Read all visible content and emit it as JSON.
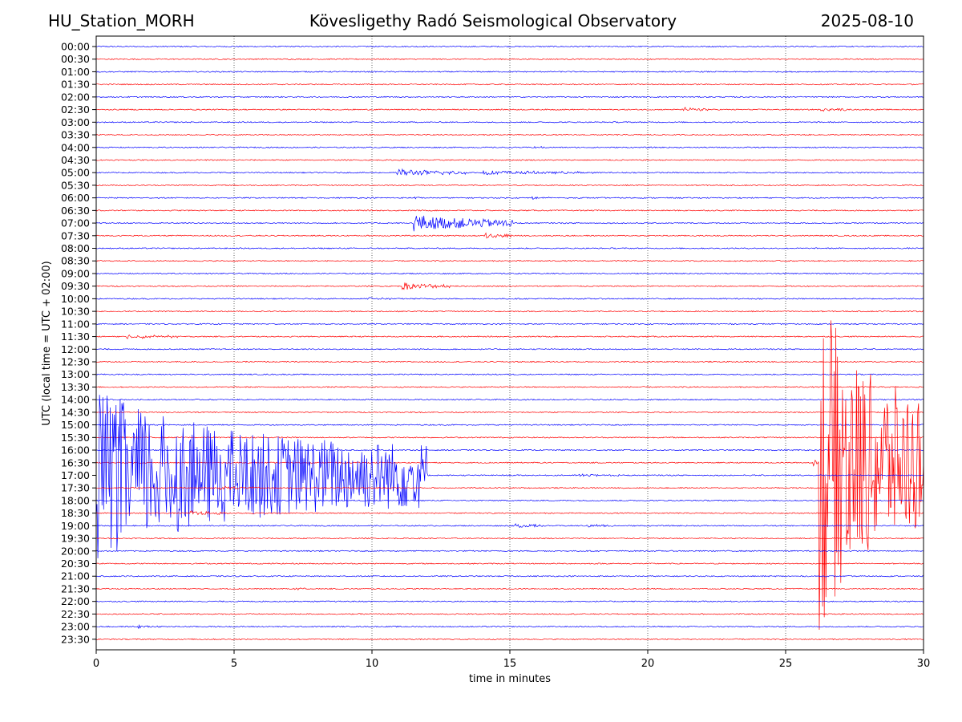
{
  "header": {
    "station": "HU_Station_MORH",
    "observatory": "Kövesligethy Radó Seismological Observatory",
    "date": "2025-08-10"
  },
  "chart_data": {
    "type": "line",
    "xlabel": "time in minutes",
    "ylabel": "UTC (local time = UTC + 02:00)",
    "xlim": [
      0,
      30
    ],
    "xticks": [
      "0",
      "5",
      "10",
      "15",
      "20",
      "25",
      "30"
    ],
    "grid": "vertical dotted lines at each x tick",
    "row_labels": [
      "00:00",
      "00:30",
      "01:00",
      "01:30",
      "02:00",
      "02:30",
      "03:00",
      "03:30",
      "04:00",
      "04:30",
      "05:00",
      "05:30",
      "06:00",
      "06:30",
      "07:00",
      "07:30",
      "08:00",
      "08:30",
      "09:00",
      "09:30",
      "10:00",
      "10:30",
      "11:00",
      "11:30",
      "12:00",
      "12:30",
      "13:00",
      "13:30",
      "14:00",
      "14:30",
      "15:00",
      "15:30",
      "16:00",
      "16:30",
      "17:00",
      "17:30",
      "18:00",
      "18:30",
      "19:00",
      "19:30",
      "20:00",
      "20:30",
      "21:00",
      "21:30",
      "22:00",
      "22:30",
      "23:00",
      "23:30"
    ],
    "trace_colors": [
      "#0000ff",
      "#ff0000"
    ],
    "events": [
      {
        "row": "02:30",
        "start_min": 21.3,
        "duration_min": 0.9,
        "amplitude": 3
      },
      {
        "row": "02:30",
        "start_min": 26.2,
        "duration_min": 1.0,
        "amplitude": 2.5
      },
      {
        "row": "03:30",
        "start_min": 9.8,
        "duration_min": 0.4,
        "amplitude": 2
      },
      {
        "row": "04:00",
        "start_min": 15.9,
        "duration_min": 0.4,
        "amplitude": 2
      },
      {
        "row": "05:00",
        "start_min": 10.9,
        "duration_min": 2.5,
        "amplitude": 5
      },
      {
        "row": "05:00",
        "start_min": 14.0,
        "duration_min": 4.0,
        "amplitude": 3
      },
      {
        "row": "06:00",
        "start_min": 11.5,
        "duration_min": 0.3,
        "amplitude": 2
      },
      {
        "row": "06:00",
        "start_min": 15.8,
        "duration_min": 1.5,
        "amplitude": 1.5
      },
      {
        "row": "07:00",
        "start_min": 11.5,
        "duration_min": 3.6,
        "amplitude": 12
      },
      {
        "row": "07:30",
        "start_min": 14.1,
        "duration_min": 1.0,
        "amplitude": 4
      },
      {
        "row": "09:30",
        "start_min": 11.1,
        "duration_min": 1.8,
        "amplitude": 5
      },
      {
        "row": "10:00",
        "start_min": 9.9,
        "duration_min": 0.9,
        "amplitude": 2
      },
      {
        "row": "11:30",
        "start_min": 1.0,
        "duration_min": 2.0,
        "amplitude": 3
      },
      {
        "row": "16:30",
        "start_min": 26.0,
        "duration_min": 0.4,
        "amplitude": 4
      },
      {
        "row": "17:00",
        "start_min": 0.0,
        "duration_min": 12.0,
        "amplitude": 110
      },
      {
        "row": "17:00",
        "start_min": 17.5,
        "duration_min": 1.5,
        "amplitude": 2
      },
      {
        "row": "17:30",
        "start_min": 4.5,
        "duration_min": 1.5,
        "amplitude": 2
      },
      {
        "row": "18:30",
        "start_min": 3.4,
        "duration_min": 1.5,
        "amplitude": 3
      },
      {
        "row": "19:00",
        "start_min": 15.2,
        "duration_min": 1.0,
        "amplitude": 3
      },
      {
        "row": "19:00",
        "start_min": 17.8,
        "duration_min": 1.0,
        "amplitude": 2
      },
      {
        "row": "21:30",
        "start_min": 7.2,
        "duration_min": 0.4,
        "amplitude": 2
      },
      {
        "row": "23:00",
        "start_min": 1.5,
        "duration_min": 0.8,
        "amplitude": 2
      },
      {
        "row": "16:30",
        "start_min": 26.2,
        "duration_min": 3.8,
        "amplitude": 230
      }
    ]
  }
}
